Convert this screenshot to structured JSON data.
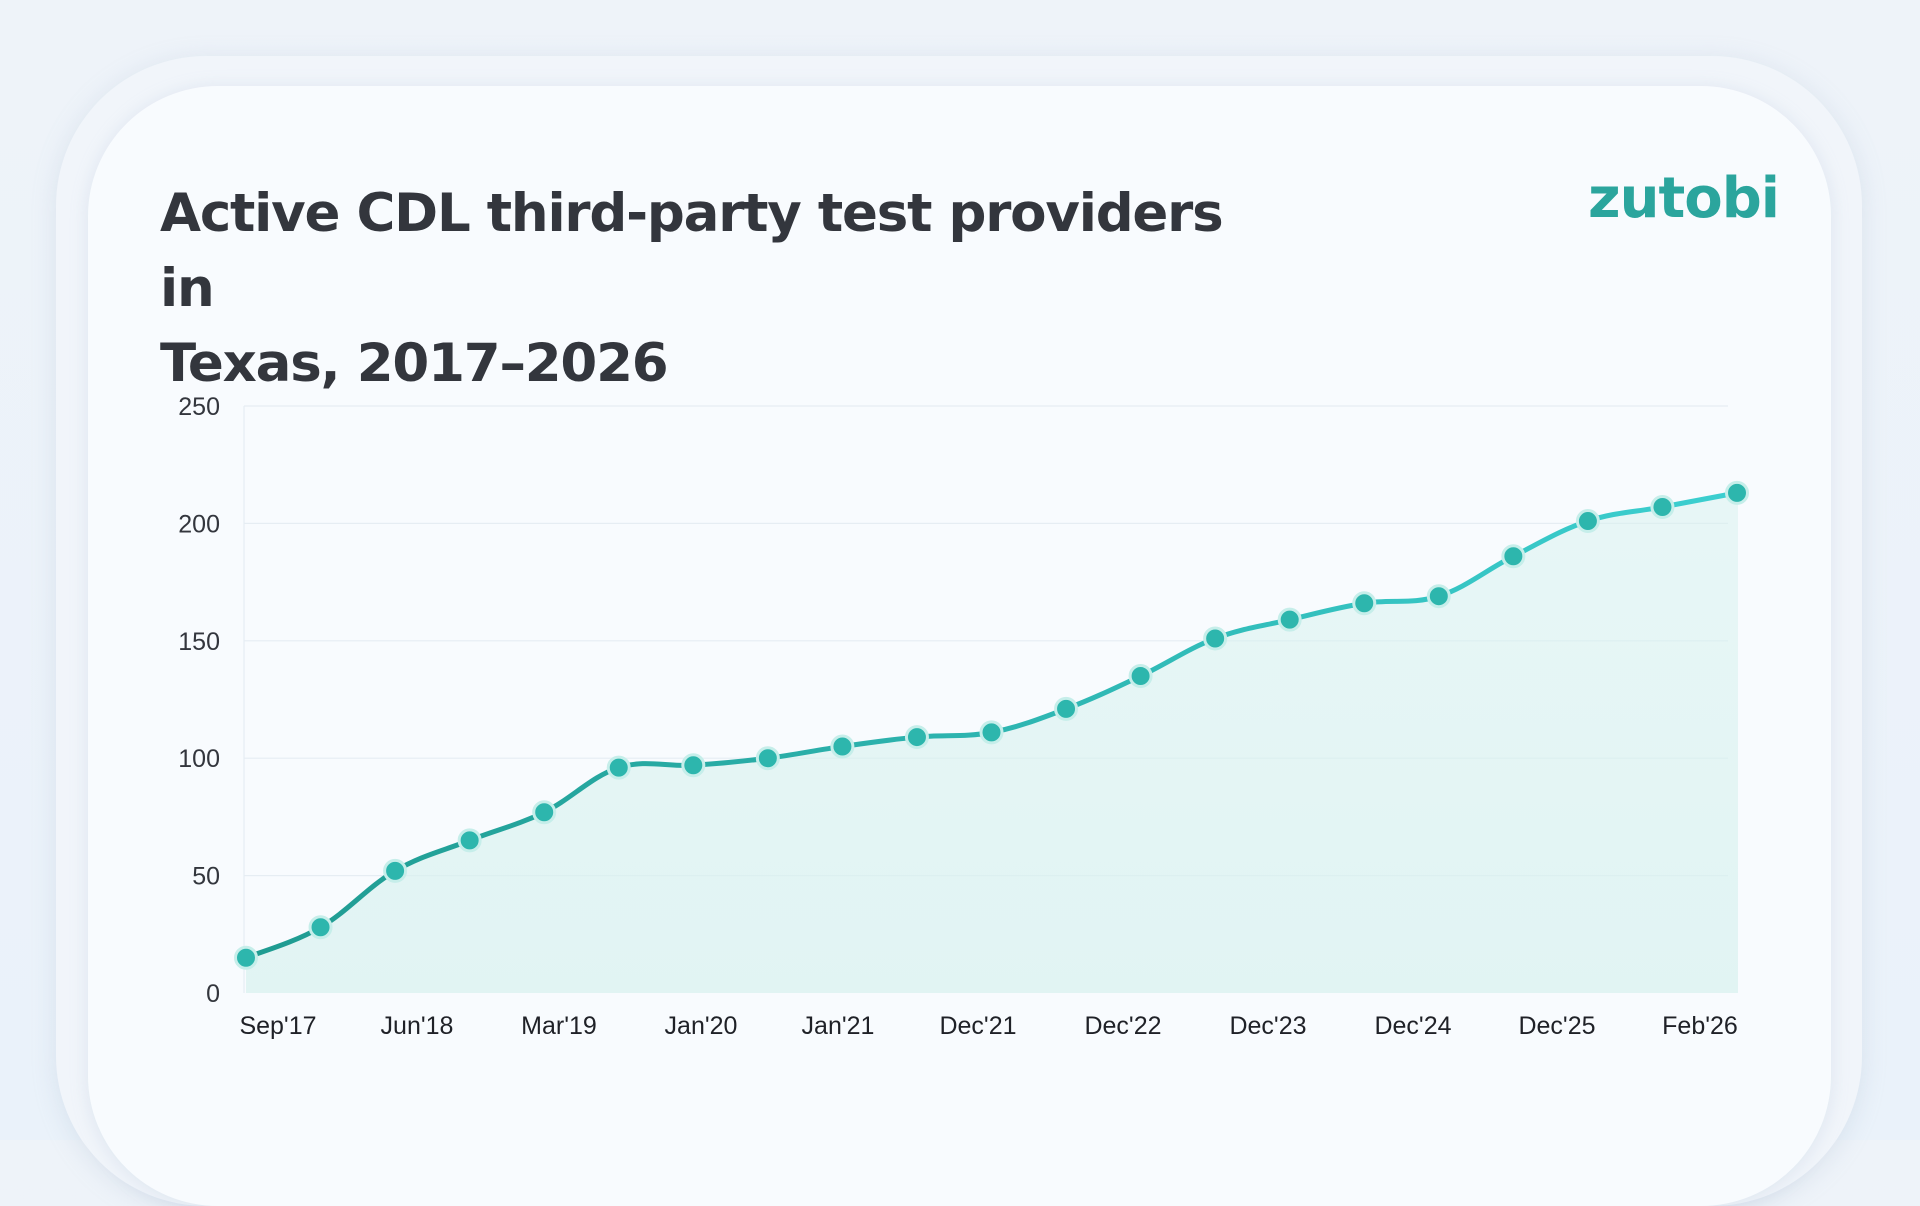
{
  "brand": "zutobi",
  "colors": {
    "line_start": "#1f9b91",
    "line_end": "#3ccfd0",
    "marker_fill": "#2db6ad",
    "marker_stroke": "#c6eeea",
    "area_fill": "#d6f1ee",
    "grid": "#e6edf3"
  },
  "chart_data": {
    "type": "area",
    "title": "Active CDL third-party test providers in Texas, 2017–2026",
    "title_lines": [
      "Active CDL third-party test providers in",
      "Texas, 2017–2026"
    ],
    "xlabel": "",
    "ylabel": "",
    "ylim": [
      0,
      250
    ],
    "yticks": [
      0,
      50,
      100,
      150,
      200,
      250
    ],
    "x_tick_labels": [
      "Sep'17",
      "Jun'18",
      "Mar'19",
      "Jan'20",
      "Jan'21",
      "Dec'21",
      "Dec'22",
      "Dec'23",
      "Dec'24",
      "Dec'25",
      "Feb'26"
    ],
    "grid": true,
    "legend": "none",
    "series": [
      {
        "name": "Active CDL third-party test providers",
        "values": [
          15,
          28,
          52,
          65,
          77,
          96,
          97,
          100,
          105,
          109,
          111,
          121,
          135,
          151,
          159,
          166,
          169,
          186,
          201,
          207,
          213
        ]
      }
    ]
  }
}
